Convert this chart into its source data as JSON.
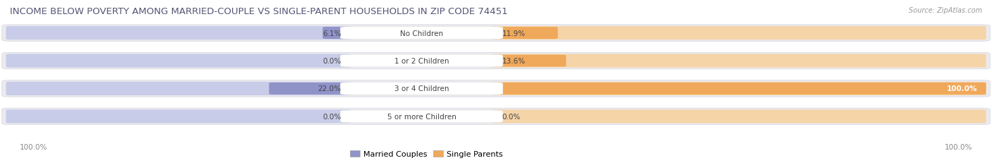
{
  "title": "INCOME BELOW POVERTY AMONG MARRIED-COUPLE VS SINGLE-PARENT HOUSEHOLDS IN ZIP CODE 74451",
  "source": "Source: ZipAtlas.com",
  "categories": [
    "No Children",
    "1 or 2 Children",
    "3 or 4 Children",
    "5 or more Children"
  ],
  "married_values": [
    6.1,
    0.0,
    22.0,
    0.0
  ],
  "single_values": [
    11.9,
    13.6,
    100.0,
    0.0
  ],
  "married_color": "#8f93c8",
  "single_color": "#f0a85a",
  "married_light": "#c8cce8",
  "single_light": "#f5d4a8",
  "bar_bg_color": "#ebebef",
  "bar_border_color": "#d5d5de",
  "title_color": "#555577",
  "label_color": "#444444",
  "category_color": "#444444",
  "source_color": "#999999",
  "bottom_label_color": "#888888",
  "title_fontsize": 9.5,
  "label_fontsize": 7.5,
  "category_fontsize": 7.5,
  "legend_fontsize": 8,
  "max_val": 100.0,
  "left_label": "100.0%",
  "right_label": "100.0%",
  "background_color": "#ffffff"
}
